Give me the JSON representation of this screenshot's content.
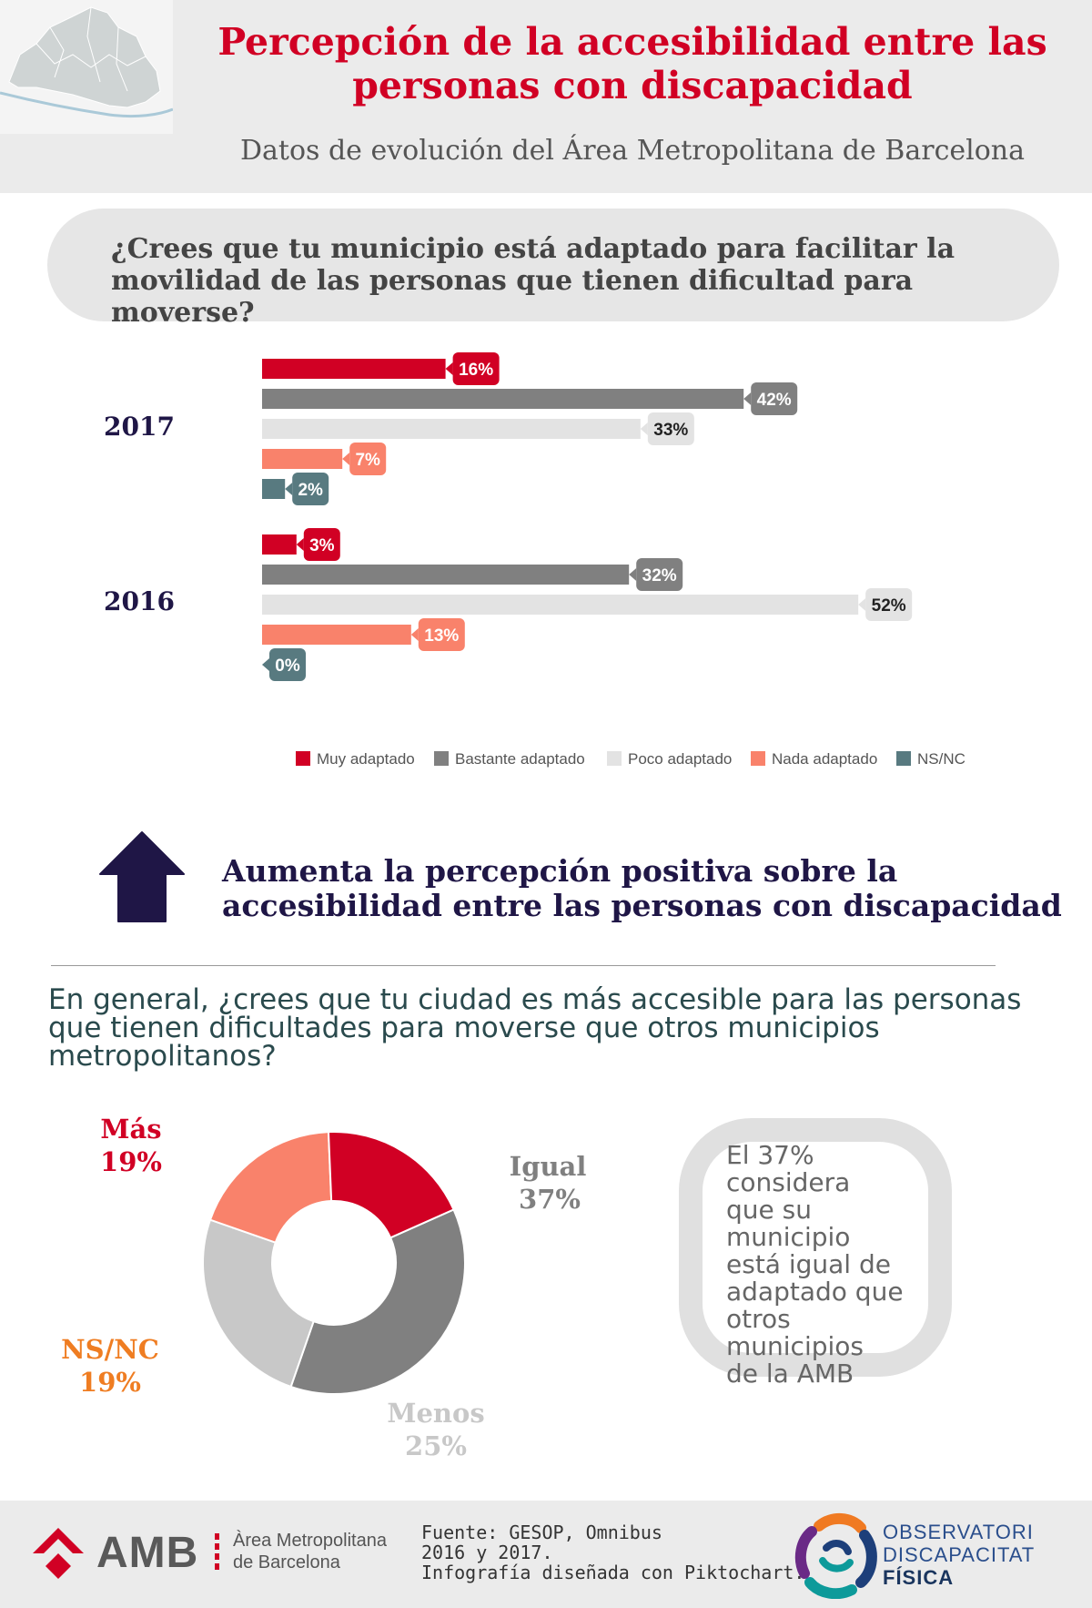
{
  "header": {
    "title_line1": "Percepción de la accesibilidad entre las",
    "title_line2": "personas con discapacidad",
    "subtitle": "Datos de evolución del Área Metropolitana de Barcelona"
  },
  "question1": {
    "line1": "¿Crees que tu municipio está adaptado para facilitar la",
    "line2": "movilidad de las personas que tienen dificultad para moverse?"
  },
  "colors": {
    "muy": "#d10024",
    "bastante": "#808080",
    "poco": "#e3e3e3",
    "nada": "#f9826b",
    "nsnc": "#587a80",
    "navy": "#1f1646"
  },
  "chart_data": [
    {
      "type": "bar",
      "orientation": "horizontal",
      "categories": [
        "2017",
        "2016"
      ],
      "series": [
        {
          "name": "Muy adaptado",
          "values": [
            16,
            3
          ]
        },
        {
          "name": "Bastante adaptado",
          "values": [
            42,
            32
          ]
        },
        {
          "name": "Poco adaptado",
          "values": [
            33,
            52
          ]
        },
        {
          "name": "Nada adaptado",
          "values": [
            7,
            13
          ]
        },
        {
          "name": "NS/NC",
          "values": [
            2,
            0
          ]
        }
      ],
      "unit": "%",
      "legend_position": "bottom",
      "grid": false
    },
    {
      "type": "pie",
      "variant": "donut",
      "slices": [
        {
          "label": "Igual",
          "value": 37
        },
        {
          "label": "Menos",
          "value": 25
        },
        {
          "label": "NS/NC",
          "value": 19
        },
        {
          "label": "Más",
          "value": 19
        }
      ],
      "unit": "%"
    }
  ],
  "conclusion": {
    "line1": "Aumenta la percepción positiva sobre la",
    "line2": "accesibilidad entre las personas con discapacidad"
  },
  "question2": {
    "line1": "En general, ¿crees que tu ciudad es más accesible para las personas",
    "line2": "que tienen dificultades para moverse que otros municipios",
    "line3": "metropolitanos?"
  },
  "donut_labels": {
    "mas_name": "Más",
    "mas_value": "19%",
    "igual_name": "Igual",
    "igual_value": "37%",
    "menos_name": "Menos",
    "menos_value": "25%",
    "nsnc_name": "NS/NC",
    "nsnc_value": "19%"
  },
  "callout": {
    "lines": [
      "El 37%",
      "considera",
      "que su",
      "municipio",
      "está igual de",
      "adaptado que",
      "otros",
      "municipios",
      "de la AMB"
    ]
  },
  "footer": {
    "amb_short": "AMB",
    "amb_line1": "Àrea Metropolitana",
    "amb_line2": "de Barcelona",
    "source_line1": "Fuente: GESOP, Omnibus",
    "source_line2": "2016 y 2017.",
    "source_line3": "Infografía diseñada con Piktochart.",
    "obs_line1": "OBSERVATORI",
    "obs_line2": "DISCAPACITAT",
    "obs_line3": "FÍSICA"
  }
}
